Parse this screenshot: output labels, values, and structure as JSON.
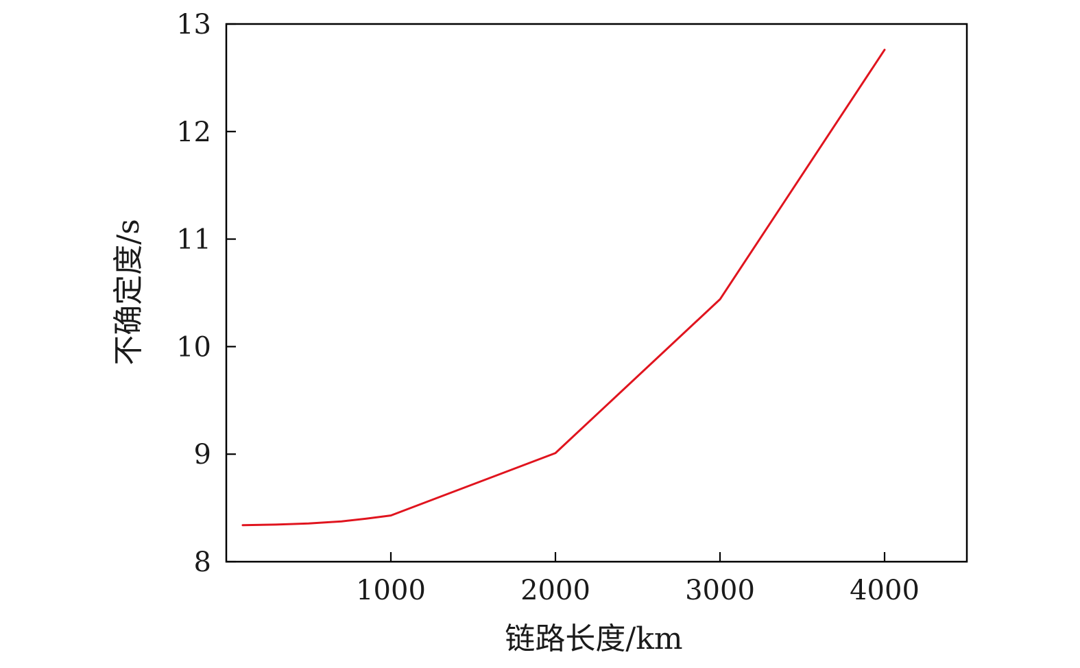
{
  "chart_data": {
    "type": "line",
    "title": "",
    "xlabel": "链路长度/km",
    "ylabel": "不确定度/s",
    "xlim": [
      0,
      4500
    ],
    "ylim": [
      8,
      13
    ],
    "x_ticks": [
      1000,
      2000,
      3000,
      4000
    ],
    "y_ticks": [
      8,
      9,
      10,
      11,
      12,
      13
    ],
    "grid": false,
    "legend": "none",
    "series": [
      {
        "color": "#e0141e",
        "points": [
          [
            100,
            8.34
          ],
          [
            300,
            8.345
          ],
          [
            500,
            8.355
          ],
          [
            700,
            8.375
          ],
          [
            850,
            8.4
          ],
          [
            1000,
            8.43
          ],
          [
            2000,
            9.01
          ],
          [
            3000,
            10.44
          ],
          [
            4000,
            12.76
          ]
        ]
      }
    ]
  }
}
